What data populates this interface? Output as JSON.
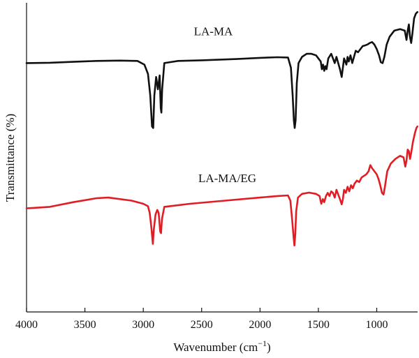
{
  "chart_data": {
    "type": "line",
    "title": "",
    "xlabel": "Wavenumber (cm",
    "xlabel_sup": "−1",
    "xlabel_end": ")",
    "ylabel": "Transmittance (%)",
    "x_reversed": true,
    "xlim": [
      4000,
      650
    ],
    "ylim": [
      0,
      100
    ],
    "xticks": [
      4000,
      3500,
      3000,
      2500,
      2000,
      1500,
      1000
    ],
    "xtick_labels": [
      "4000",
      "3500",
      "3000",
      "2500",
      "2000",
      "1500",
      "1000"
    ],
    "grid": false,
    "series": [
      {
        "name": "LA-MA",
        "color": "#111111",
        "points": [
          [
            4000,
            80.5
          ],
          [
            3800,
            80.6
          ],
          [
            3600,
            80.9
          ],
          [
            3400,
            81.2
          ],
          [
            3200,
            81.3
          ],
          [
            3050,
            81.2
          ],
          [
            2990,
            80.0
          ],
          [
            2960,
            77.0
          ],
          [
            2940,
            70.0
          ],
          [
            2925,
            60.0
          ],
          [
            2915,
            59.5
          ],
          [
            2905,
            70.0
          ],
          [
            2890,
            76.0
          ],
          [
            2875,
            72.0
          ],
          [
            2860,
            76.5
          ],
          [
            2850,
            66.0
          ],
          [
            2845,
            64.5
          ],
          [
            2838,
            72.0
          ],
          [
            2820,
            80.5
          ],
          [
            2700,
            81.2
          ],
          [
            2500,
            81.4
          ],
          [
            2200,
            81.8
          ],
          [
            2000,
            82.2
          ],
          [
            1850,
            82.4
          ],
          [
            1760,
            82.3
          ],
          [
            1735,
            79.0
          ],
          [
            1720,
            70.0
          ],
          [
            1710,
            62.0
          ],
          [
            1703,
            59.5
          ],
          [
            1695,
            62.0
          ],
          [
            1685,
            74.0
          ],
          [
            1670,
            80.5
          ],
          [
            1640,
            82.5
          ],
          [
            1600,
            83.5
          ],
          [
            1560,
            83.5
          ],
          [
            1520,
            83.0
          ],
          [
            1480,
            81.0
          ],
          [
            1470,
            78.5
          ],
          [
            1460,
            80.0
          ],
          [
            1450,
            78.0
          ],
          [
            1440,
            79.5
          ],
          [
            1430,
            78.5
          ],
          [
            1415,
            82.0
          ],
          [
            1390,
            83.5
          ],
          [
            1375,
            82.0
          ],
          [
            1360,
            80.5
          ],
          [
            1345,
            82.5
          ],
          [
            1330,
            80.5
          ],
          [
            1315,
            78.5
          ],
          [
            1300,
            76.0
          ],
          [
            1290,
            79.0
          ],
          [
            1280,
            82.0
          ],
          [
            1260,
            80.0
          ],
          [
            1250,
            82.5
          ],
          [
            1240,
            81.0
          ],
          [
            1225,
            83.0
          ],
          [
            1210,
            80.5
          ],
          [
            1195,
            82.5
          ],
          [
            1180,
            84.5
          ],
          [
            1160,
            84.0
          ],
          [
            1140,
            85.0
          ],
          [
            1120,
            86.0
          ],
          [
            1100,
            86.2
          ],
          [
            1080,
            86.5
          ],
          [
            1060,
            87.0
          ],
          [
            1040,
            87.3
          ],
          [
            1020,
            86.5
          ],
          [
            1000,
            85.0
          ],
          [
            980,
            83.0
          ],
          [
            965,
            80.8
          ],
          [
            950,
            80.5
          ],
          [
            935,
            82.5
          ],
          [
            915,
            86.5
          ],
          [
            890,
            89.0
          ],
          [
            850,
            91.0
          ],
          [
            800,
            91.5
          ],
          [
            760,
            91.0
          ],
          [
            745,
            88.0
          ],
          [
            735,
            91.0
          ],
          [
            725,
            93.0
          ],
          [
            715,
            89.0
          ],
          [
            705,
            87.0
          ],
          [
            695,
            90.0
          ],
          [
            680,
            95.0
          ],
          [
            665,
            96.5
          ],
          [
            652,
            97.0
          ]
        ]
      },
      {
        "name": "LA-MA/EG",
        "color": "#e01d24",
        "points": [
          [
            4000,
            33.5
          ],
          [
            3800,
            34.0
          ],
          [
            3600,
            35.5
          ],
          [
            3400,
            36.8
          ],
          [
            3300,
            37.0
          ],
          [
            3100,
            36.0
          ],
          [
            3000,
            35.0
          ],
          [
            2960,
            34.2
          ],
          [
            2945,
            32.0
          ],
          [
            2930,
            27.0
          ],
          [
            2918,
            22.0
          ],
          [
            2910,
            26.5
          ],
          [
            2895,
            31.5
          ],
          [
            2880,
            33.0
          ],
          [
            2868,
            32.0
          ],
          [
            2855,
            26.0
          ],
          [
            2848,
            25.5
          ],
          [
            2840,
            30.0
          ],
          [
            2820,
            34.0
          ],
          [
            2600,
            35.0
          ],
          [
            2300,
            36.0
          ],
          [
            2000,
            37.0
          ],
          [
            1850,
            37.5
          ],
          [
            1760,
            37.7
          ],
          [
            1740,
            36.0
          ],
          [
            1725,
            30.0
          ],
          [
            1712,
            24.0
          ],
          [
            1705,
            21.5
          ],
          [
            1698,
            25.0
          ],
          [
            1690,
            32.5
          ],
          [
            1675,
            37.0
          ],
          [
            1640,
            38.2
          ],
          [
            1580,
            38.6
          ],
          [
            1520,
            38.2
          ],
          [
            1490,
            37.5
          ],
          [
            1475,
            35.0
          ],
          [
            1462,
            36.5
          ],
          [
            1450,
            35.5
          ],
          [
            1435,
            37.5
          ],
          [
            1420,
            38.5
          ],
          [
            1405,
            37.5
          ],
          [
            1390,
            39.0
          ],
          [
            1375,
            38.5
          ],
          [
            1360,
            37.0
          ],
          [
            1345,
            39.5
          ],
          [
            1330,
            38.0
          ],
          [
            1315,
            36.5
          ],
          [
            1300,
            34.8
          ],
          [
            1290,
            36.5
          ],
          [
            1280,
            39.5
          ],
          [
            1265,
            38.5
          ],
          [
            1250,
            40.5
          ],
          [
            1235,
            39.0
          ],
          [
            1220,
            41.0
          ],
          [
            1205,
            40.0
          ],
          [
            1190,
            41.5
          ],
          [
            1170,
            42.5
          ],
          [
            1150,
            42.0
          ],
          [
            1130,
            43.5
          ],
          [
            1110,
            44.0
          ],
          [
            1090,
            44.5
          ],
          [
            1070,
            45.5
          ],
          [
            1055,
            47.5
          ],
          [
            1040,
            46.5
          ],
          [
            1020,
            45.5
          ],
          [
            1000,
            44.5
          ],
          [
            985,
            43.0
          ],
          [
            970,
            41.0
          ],
          [
            955,
            38.5
          ],
          [
            942,
            38.0
          ],
          [
            930,
            40.5
          ],
          [
            910,
            45.5
          ],
          [
            880,
            48.0
          ],
          [
            840,
            49.5
          ],
          [
            800,
            50.5
          ],
          [
            770,
            50.0
          ],
          [
            755,
            47.0
          ],
          [
            745,
            49.0
          ],
          [
            735,
            52.5
          ],
          [
            725,
            52.0
          ],
          [
            715,
            49.5
          ],
          [
            705,
            51.5
          ],
          [
            690,
            55.0
          ],
          [
            672,
            58.0
          ],
          [
            660,
            59.5
          ],
          [
            652,
            60.0
          ]
        ]
      }
    ],
    "annotations": [
      {
        "text": "LA-MA",
        "x": 2400,
        "y": 89.5
      },
      {
        "text": "LA-MA/EG",
        "x": 2280,
        "y": 42.0
      }
    ]
  }
}
